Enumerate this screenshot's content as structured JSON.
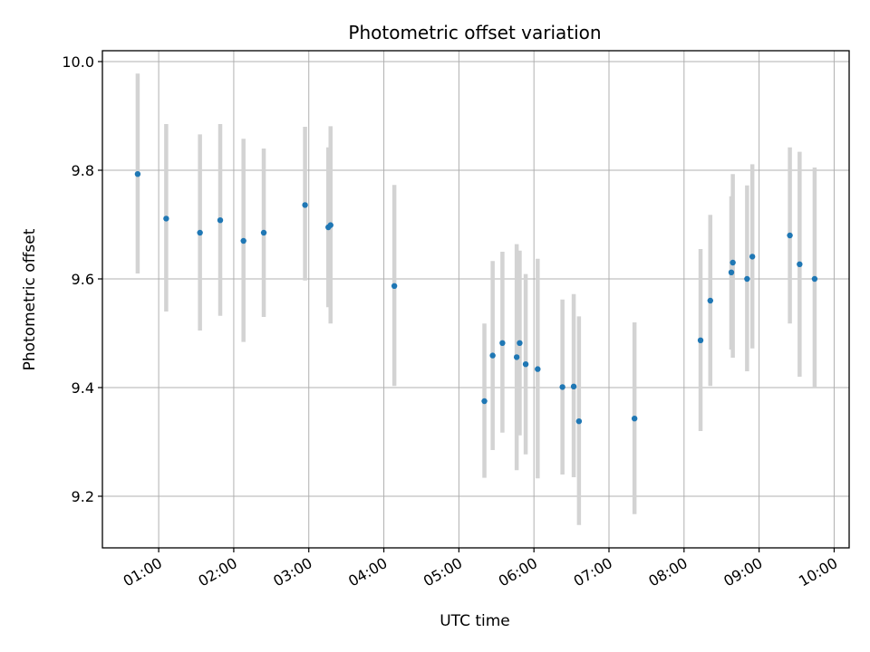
{
  "chart_data": {
    "type": "scatter",
    "title": "Photometric offset variation",
    "xlabel": "UTC time",
    "ylabel": "Photometric offset",
    "x_unit": "hours UTC",
    "xlim": [
      0.25,
      10.2
    ],
    "ylim": [
      9.105,
      10.02
    ],
    "x_ticks": [
      {
        "value": 1,
        "label": "01:00"
      },
      {
        "value": 2,
        "label": "02:00"
      },
      {
        "value": 3,
        "label": "03:00"
      },
      {
        "value": 4,
        "label": "04:00"
      },
      {
        "value": 5,
        "label": "05:00"
      },
      {
        "value": 6,
        "label": "06:00"
      },
      {
        "value": 7,
        "label": "07:00"
      },
      {
        "value": 8,
        "label": "08:00"
      },
      {
        "value": 9,
        "label": "09:00"
      },
      {
        "value": 10,
        "label": "10:00"
      }
    ],
    "y_ticks": [
      {
        "value": 9.2,
        "label": "9.2"
      },
      {
        "value": 9.4,
        "label": "9.4"
      },
      {
        "value": 9.6,
        "label": "9.6"
      },
      {
        "value": 9.8,
        "label": "9.8"
      },
      {
        "value": 10.0,
        "label": "10.0"
      }
    ],
    "grid": true,
    "colors": {
      "point": "#1f77b4",
      "errorbar": "#d3d3d3",
      "grid": "#b0b0b0"
    },
    "points": [
      {
        "x": 0.72,
        "y": 9.793,
        "lo": 9.61,
        "hi": 9.978
      },
      {
        "x": 1.1,
        "y": 9.711,
        "lo": 9.54,
        "hi": 9.885
      },
      {
        "x": 1.55,
        "y": 9.685,
        "lo": 9.505,
        "hi": 9.866
      },
      {
        "x": 1.82,
        "y": 9.708,
        "lo": 9.532,
        "hi": 9.885
      },
      {
        "x": 2.13,
        "y": 9.67,
        "lo": 9.484,
        "hi": 9.858
      },
      {
        "x": 2.4,
        "y": 9.685,
        "lo": 9.53,
        "hi": 9.84
      },
      {
        "x": 2.95,
        "y": 9.736,
        "lo": 9.597,
        "hi": 9.88
      },
      {
        "x": 3.26,
        "y": 9.695,
        "lo": 9.548,
        "hi": 9.842
      },
      {
        "x": 3.29,
        "y": 9.699,
        "lo": 9.518,
        "hi": 9.881
      },
      {
        "x": 4.14,
        "y": 9.587,
        "lo": 9.403,
        "hi": 9.773
      },
      {
        "x": 5.34,
        "y": 9.375,
        "lo": 9.234,
        "hi": 9.518
      },
      {
        "x": 5.45,
        "y": 9.459,
        "lo": 9.285,
        "hi": 9.633
      },
      {
        "x": 5.58,
        "y": 9.482,
        "lo": 9.317,
        "hi": 9.65
      },
      {
        "x": 5.77,
        "y": 9.456,
        "lo": 9.248,
        "hi": 9.664
      },
      {
        "x": 5.81,
        "y": 9.482,
        "lo": 9.312,
        "hi": 9.652
      },
      {
        "x": 5.89,
        "y": 9.443,
        "lo": 9.277,
        "hi": 9.609
      },
      {
        "x": 6.05,
        "y": 9.434,
        "lo": 9.233,
        "hi": 9.637
      },
      {
        "x": 6.38,
        "y": 9.401,
        "lo": 9.24,
        "hi": 9.562
      },
      {
        "x": 6.53,
        "y": 9.402,
        "lo": 9.235,
        "hi": 9.572
      },
      {
        "x": 6.6,
        "y": 9.338,
        "lo": 9.147,
        "hi": 9.531
      },
      {
        "x": 7.34,
        "y": 9.343,
        "lo": 9.167,
        "hi": 9.52
      },
      {
        "x": 8.22,
        "y": 9.487,
        "lo": 9.32,
        "hi": 9.655
      },
      {
        "x": 8.35,
        "y": 9.56,
        "lo": 9.403,
        "hi": 9.718
      },
      {
        "x": 8.63,
        "y": 9.612,
        "lo": 9.47,
        "hi": 9.752
      },
      {
        "x": 8.65,
        "y": 9.63,
        "lo": 9.455,
        "hi": 9.793
      },
      {
        "x": 8.84,
        "y": 9.6,
        "lo": 9.43,
        "hi": 9.772
      },
      {
        "x": 8.91,
        "y": 9.641,
        "lo": 9.472,
        "hi": 9.811
      },
      {
        "x": 9.41,
        "y": 9.68,
        "lo": 9.518,
        "hi": 9.842
      },
      {
        "x": 9.54,
        "y": 9.627,
        "lo": 9.42,
        "hi": 9.834
      },
      {
        "x": 9.74,
        "y": 9.6,
        "lo": 9.4,
        "hi": 9.805
      }
    ]
  }
}
